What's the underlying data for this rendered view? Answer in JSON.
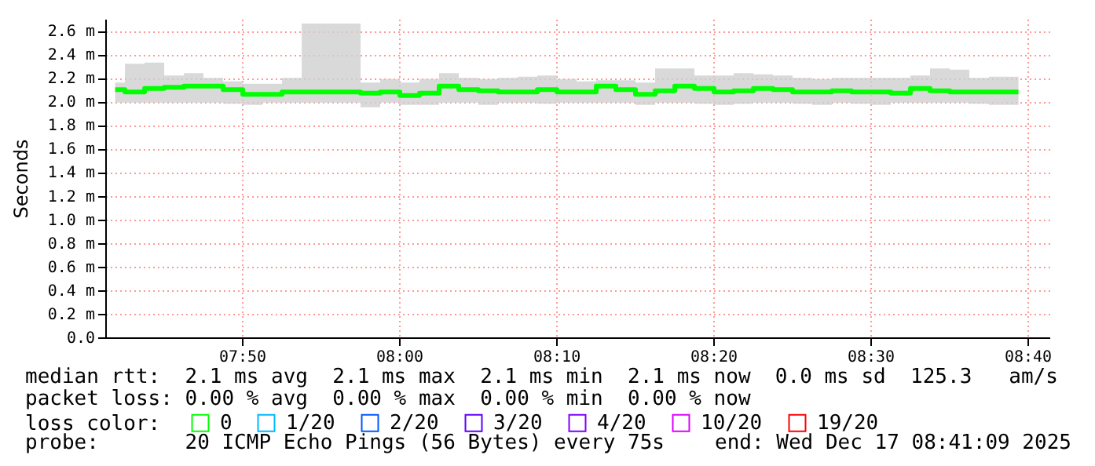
{
  "chart_data": {
    "type": "step",
    "ylabel": "Seconds",
    "legend_title": "loss color:",
    "legend": "bottom left",
    "grid": true,
    "xlim": [
      7.6883,
      8.69
    ],
    "xticks": [
      {
        "value": 7.8333,
        "label": "07:50"
      },
      {
        "value": 8,
        "label": "08:00"
      },
      {
        "value": 8.1667,
        "label": "08:10"
      },
      {
        "value": 8.3333,
        "label": "08:20"
      },
      {
        "value": 8.5,
        "label": "08:30"
      },
      {
        "value": 8.6667,
        "label": "08:40"
      }
    ],
    "ylim": [
      0,
      2.7
    ],
    "yticks": [
      {
        "value": 0,
        "label": "0.0"
      },
      {
        "value": 0.2,
        "label": "0.2 m"
      },
      {
        "value": 0.4,
        "label": "0.4 m"
      },
      {
        "value": 0.6,
        "label": "0.6 m"
      },
      {
        "value": 0.8,
        "label": "0.8 m"
      },
      {
        "value": 1.0,
        "label": "1.0 m"
      },
      {
        "value": 1.2,
        "label": "1.2 m"
      },
      {
        "value": 1.4,
        "label": "1.4 m"
      },
      {
        "value": 1.6,
        "label": "1.6 m"
      },
      {
        "value": 1.8,
        "label": "1.8 m"
      },
      {
        "value": 2.0,
        "label": "2.0 m"
      },
      {
        "value": 2.2,
        "label": "2.2 m"
      },
      {
        "value": 2.4,
        "label": "2.4 m"
      },
      {
        "value": 2.6,
        "label": "2.6 m"
      }
    ],
    "x": [
      7.6988,
      7.7196,
      7.7404,
      7.7613,
      7.7821,
      7.8029,
      7.8238,
      7.8446,
      7.8654,
      7.8863,
      7.9071,
      7.9279,
      7.9488,
      7.9696,
      7.9904,
      8.0113,
      8.0321,
      8.0529,
      8.0738,
      8.0946,
      8.1154,
      8.1363,
      8.1571,
      8.1779,
      8.1988,
      8.2196,
      8.2404,
      8.2613,
      8.2821,
      8.3029,
      8.3238,
      8.3446,
      8.3654,
      8.3863,
      8.4071,
      8.4279,
      8.4488,
      8.4696,
      8.4904,
      8.5113,
      8.5321,
      8.5529,
      8.5738,
      8.5946,
      8.6154,
      8.6363,
      8.6571
    ],
    "series": [
      {
        "name": "0",
        "color": "#00ff00",
        "values": [
          2.1,
          2.08,
          2.11,
          2.12,
          2.13,
          2.13,
          2.1,
          2.06,
          2.06,
          2.08,
          2.08,
          2.08,
          2.08,
          2.07,
          2.08,
          2.05,
          2.07,
          2.13,
          2.1,
          2.09,
          2.08,
          2.08,
          2.1,
          2.08,
          2.08,
          2.13,
          2.1,
          2.06,
          2.09,
          2.13,
          2.11,
          2.08,
          2.09,
          2.11,
          2.1,
          2.08,
          2.08,
          2.09,
          2.08,
          2.08,
          2.07,
          2.11,
          2.09,
          2.08,
          2.08,
          2.08,
          2.08
        ],
        "lower": [
          1.99,
          1.99,
          1.99,
          1.99,
          1.99,
          1.99,
          1.98,
          1.97,
          1.99,
          1.99,
          1.99,
          1.99,
          1.99,
          1.95,
          1.99,
          1.97,
          1.97,
          1.99,
          1.99,
          1.97,
          1.99,
          1.99,
          1.98,
          1.99,
          1.99,
          1.99,
          1.99,
          1.97,
          1.99,
          1.99,
          1.98,
          1.97,
          1.98,
          1.99,
          1.99,
          1.98,
          1.97,
          1.99,
          1.98,
          1.97,
          1.99,
          1.99,
          1.99,
          1.99,
          1.98,
          1.97,
          1.97
        ],
        "upper": [
          2.16,
          2.32,
          2.33,
          2.22,
          2.24,
          2.2,
          2.17,
          2.15,
          2.15,
          2.2,
          2.66,
          2.66,
          2.66,
          2.16,
          2.19,
          2.16,
          2.19,
          2.24,
          2.2,
          2.19,
          2.2,
          2.21,
          2.22,
          2.19,
          2.17,
          2.18,
          2.18,
          2.16,
          2.28,
          2.28,
          2.22,
          2.22,
          2.24,
          2.23,
          2.22,
          2.2,
          2.19,
          2.2,
          2.2,
          2.2,
          2.2,
          2.22,
          2.28,
          2.27,
          2.2,
          2.21,
          2.21
        ]
      },
      {
        "name": "1/20",
        "color": "#00b8ff",
        "values": [
          null,
          null,
          null,
          null,
          null,
          null,
          null,
          null,
          null,
          null,
          null,
          null,
          null,
          null,
          null,
          null,
          null,
          null,
          null,
          null,
          null,
          null,
          null,
          null,
          null,
          null,
          null,
          null,
          null,
          null,
          null,
          null,
          null,
          null,
          null,
          null,
          null,
          null,
          null,
          null,
          null,
          null,
          null,
          null,
          null,
          null,
          null
        ]
      },
      {
        "name": "2/20",
        "color": "#0059ff",
        "values": [
          null,
          null,
          null,
          null,
          null,
          null,
          null,
          null,
          null,
          null,
          null,
          null,
          null,
          null,
          null,
          null,
          null,
          null,
          null,
          null,
          null,
          null,
          null,
          null,
          null,
          null,
          null,
          null,
          null,
          null,
          null,
          null,
          null,
          null,
          null,
          null,
          null,
          null,
          null,
          null,
          null,
          null,
          null,
          null,
          null,
          null,
          null
        ]
      },
      {
        "name": "3/20",
        "color": "#5e00ff",
        "values": [
          null,
          null,
          null,
          null,
          null,
          null,
          null,
          null,
          null,
          null,
          null,
          null,
          null,
          null,
          null,
          null,
          null,
          null,
          null,
          null,
          null,
          null,
          null,
          null,
          null,
          null,
          null,
          null,
          null,
          null,
          null,
          null,
          null,
          null,
          null,
          null,
          null,
          null,
          null,
          null,
          null,
          null,
          null,
          null,
          null,
          null,
          null
        ]
      },
      {
        "name": "4/20",
        "color": "#7e00ff",
        "values": [
          null,
          null,
          null,
          null,
          null,
          null,
          null,
          null,
          null,
          null,
          null,
          null,
          null,
          null,
          null,
          null,
          null,
          null,
          null,
          null,
          null,
          null,
          null,
          null,
          null,
          null,
          null,
          null,
          null,
          null,
          null,
          null,
          null,
          null,
          null,
          null,
          null,
          null,
          null,
          null,
          null,
          null,
          null,
          null,
          null,
          null,
          null
        ]
      },
      {
        "name": "10/20",
        "color": "#dd00ff",
        "values": [
          null,
          null,
          null,
          null,
          null,
          null,
          null,
          null,
          null,
          null,
          null,
          null,
          null,
          null,
          null,
          null,
          null,
          null,
          null,
          null,
          null,
          null,
          null,
          null,
          null,
          null,
          null,
          null,
          null,
          null,
          null,
          null,
          null,
          null,
          null,
          null,
          null,
          null,
          null,
          null,
          null,
          null,
          null,
          null,
          null,
          null,
          null
        ]
      },
      {
        "name": "19/20",
        "color": "#ff0000",
        "values": [
          null,
          null,
          null,
          null,
          null,
          null,
          null,
          null,
          null,
          null,
          null,
          null,
          null,
          null,
          null,
          null,
          null,
          null,
          null,
          null,
          null,
          null,
          null,
          null,
          null,
          null,
          null,
          null,
          null,
          null,
          null,
          null,
          null,
          null,
          null,
          null,
          null,
          null,
          null,
          null,
          null,
          null,
          null,
          null,
          null,
          null,
          null
        ]
      }
    ],
    "annotations": [
      "median rtt:  2.1 ms avg  2.1 ms max  2.1 ms min  2.1 ms now  0.0 ms sd  125.3   am/s",
      "packet loss: 0.00 % avg  0.00 % max  0.00 % min  0.00 % now",
      "probe:       20 ICMP Echo Pings (56 Bytes) every 75s",
      "end: Wed Dec 17 08:41:09 2025"
    ]
  }
}
